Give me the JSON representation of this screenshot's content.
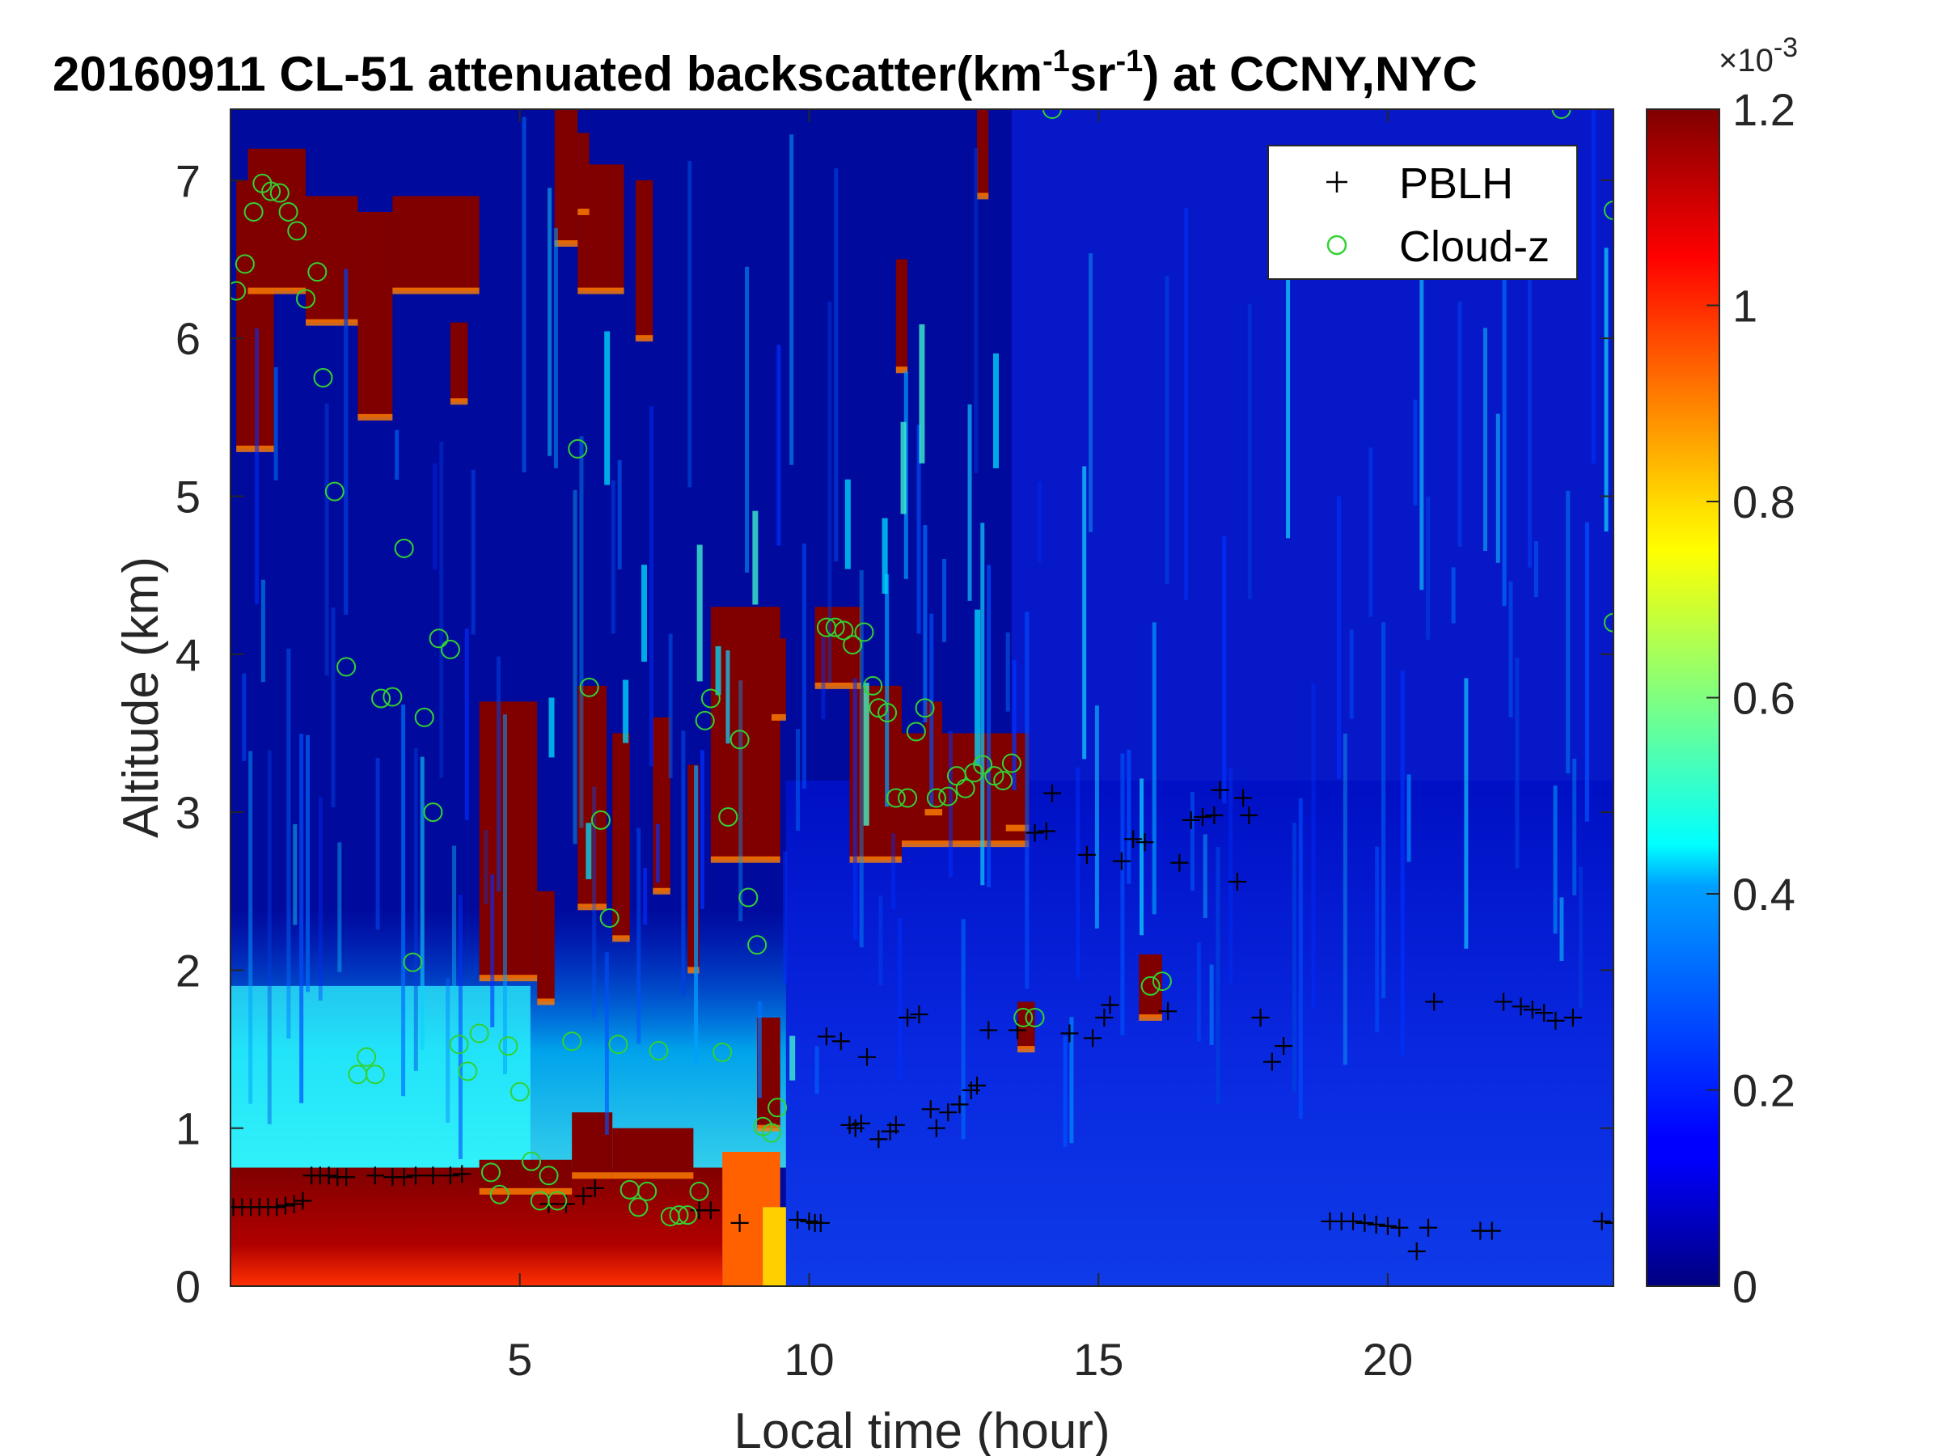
{
  "figure": {
    "title_main": "20160911  CL-51 attenuated backscatter(km",
    "title_sup1": "-1",
    "title_mid": "sr",
    "title_sup2": "-1",
    "title_end": ") at CCNY,NYC"
  },
  "chart_data": {
    "type": "heatmap",
    "xlabel": "Local time (hour)",
    "ylabel": "Altitude (km)",
    "xlim": [
      0,
      23.9
    ],
    "ylim": [
      0,
      7.45
    ],
    "xticks": [
      5,
      10,
      15,
      20
    ],
    "yticks": [
      0,
      1,
      2,
      3,
      4,
      5,
      6,
      7
    ],
    "colorbar": {
      "colormap": "jet",
      "clim": [
        0,
        1.2
      ],
      "ticks": [
        "0",
        "0.2",
        "0.4",
        "0.6",
        "0.8",
        "1",
        "1.2"
      ],
      "ticks_num": [
        0,
        0.2,
        0.4,
        0.6,
        0.8,
        1.0,
        1.2
      ],
      "exponent_base": "×10",
      "exponent": "-3"
    },
    "legend": {
      "placement": "top-right",
      "entries": [
        {
          "label": "PBLH",
          "marker": "+",
          "color": "#000000"
        },
        {
          "label": "Cloud-z",
          "marker": "o",
          "color": "#32d232"
        }
      ]
    },
    "series": [
      {
        "name": "PBLH",
        "points": [
          [
            0.05,
            0.5
          ],
          [
            0.2,
            0.5
          ],
          [
            0.35,
            0.5
          ],
          [
            0.5,
            0.5
          ],
          [
            0.65,
            0.5
          ],
          [
            0.8,
            0.5
          ],
          [
            0.95,
            0.51
          ],
          [
            1.1,
            0.52
          ],
          [
            1.25,
            0.54
          ],
          [
            1.4,
            0.7
          ],
          [
            1.55,
            0.7
          ],
          [
            1.7,
            0.7
          ],
          [
            1.85,
            0.69
          ],
          [
            2.0,
            0.69
          ],
          [
            2.5,
            0.7
          ],
          [
            2.8,
            0.69
          ],
          [
            3.0,
            0.69
          ],
          [
            3.2,
            0.7
          ],
          [
            3.5,
            0.7
          ],
          [
            3.8,
            0.7
          ],
          [
            4.0,
            0.71
          ],
          [
            5.5,
            0.52
          ],
          [
            5.8,
            0.52
          ],
          [
            6.1,
            0.57
          ],
          [
            6.3,
            0.62
          ],
          [
            8.1,
            0.48
          ],
          [
            8.3,
            0.48
          ],
          [
            8.8,
            0.4
          ],
          [
            9.8,
            0.42
          ],
          [
            10.0,
            0.41
          ],
          [
            10.1,
            0.4
          ],
          [
            10.2,
            0.4
          ],
          [
            10.3,
            1.58
          ],
          [
            10.55,
            1.55
          ],
          [
            10.8,
            1.0
          ],
          [
            10.7,
            1.02
          ],
          [
            10.9,
            1.03
          ],
          [
            11.0,
            1.45
          ],
          [
            11.2,
            0.93
          ],
          [
            11.4,
            0.98
          ],
          [
            11.5,
            1.02
          ],
          [
            11.7,
            1.7
          ],
          [
            11.9,
            1.72
          ],
          [
            12.1,
            1.12
          ],
          [
            12.2,
            1.0
          ],
          [
            12.4,
            1.1
          ],
          [
            12.6,
            1.15
          ],
          [
            12.8,
            1.24
          ],
          [
            12.9,
            1.27
          ],
          [
            13.1,
            1.62
          ],
          [
            13.6,
            1.62
          ],
          [
            13.9,
            2.87
          ],
          [
            14.1,
            2.88
          ],
          [
            14.2,
            3.12
          ],
          [
            14.5,
            1.6
          ],
          [
            14.8,
            2.73
          ],
          [
            14.9,
            1.57
          ],
          [
            15.1,
            1.7
          ],
          [
            15.2,
            1.78
          ],
          [
            15.4,
            2.69
          ],
          [
            15.6,
            2.83
          ],
          [
            15.8,
            2.81
          ],
          [
            16.2,
            1.74
          ],
          [
            16.4,
            2.68
          ],
          [
            16.6,
            2.95
          ],
          [
            16.8,
            2.97
          ],
          [
            17.0,
            2.98
          ],
          [
            17.1,
            3.14
          ],
          [
            17.4,
            2.56
          ],
          [
            17.5,
            3.09
          ],
          [
            17.6,
            2.98
          ],
          [
            17.8,
            1.7
          ],
          [
            18.0,
            1.42
          ],
          [
            18.2,
            1.52
          ],
          [
            19.0,
            0.41
          ],
          [
            19.2,
            0.41
          ],
          [
            19.4,
            0.41
          ],
          [
            19.6,
            0.4
          ],
          [
            19.8,
            0.39
          ],
          [
            20.0,
            0.38
          ],
          [
            20.2,
            0.37
          ],
          [
            20.5,
            0.22
          ],
          [
            20.7,
            0.37
          ],
          [
            20.8,
            1.8
          ],
          [
            21.6,
            0.35
          ],
          [
            21.8,
            0.35
          ],
          [
            22.0,
            1.8
          ],
          [
            22.3,
            1.77
          ],
          [
            22.5,
            1.75
          ],
          [
            22.7,
            1.73
          ],
          [
            22.9,
            1.68
          ],
          [
            23.2,
            1.7
          ],
          [
            23.7,
            0.41
          ],
          [
            23.9,
            0.4
          ]
        ]
      },
      {
        "name": "Cloud-z",
        "points": [
          [
            0.1,
            6.3
          ],
          [
            0.25,
            6.47
          ],
          [
            0.4,
            6.8
          ],
          [
            0.55,
            6.98
          ],
          [
            0.7,
            6.93
          ],
          [
            0.85,
            6.92
          ],
          [
            1.0,
            6.8
          ],
          [
            1.15,
            6.68
          ],
          [
            1.3,
            6.25
          ],
          [
            1.5,
            6.42
          ],
          [
            1.6,
            5.75
          ],
          [
            1.8,
            5.03
          ],
          [
            2.0,
            3.92
          ],
          [
            2.2,
            1.34
          ],
          [
            2.35,
            1.45
          ],
          [
            2.5,
            1.34
          ],
          [
            2.6,
            3.72
          ],
          [
            2.8,
            3.73
          ],
          [
            3.0,
            4.67
          ],
          [
            3.15,
            2.05
          ],
          [
            3.35,
            3.6
          ],
          [
            3.5,
            3.0
          ],
          [
            3.6,
            4.1
          ],
          [
            3.8,
            4.03
          ],
          [
            3.95,
            1.53
          ],
          [
            4.1,
            1.36
          ],
          [
            4.3,
            1.6
          ],
          [
            4.5,
            0.72
          ],
          [
            4.65,
            0.58
          ],
          [
            4.8,
            1.52
          ],
          [
            5.0,
            1.23
          ],
          [
            5.2,
            0.79
          ],
          [
            5.35,
            0.54
          ],
          [
            5.5,
            0.7
          ],
          [
            5.65,
            0.54
          ],
          [
            5.9,
            1.55
          ],
          [
            6.0,
            5.3
          ],
          [
            6.2,
            3.79
          ],
          [
            6.4,
            2.95
          ],
          [
            6.55,
            2.33
          ],
          [
            6.7,
            1.53
          ],
          [
            6.9,
            0.61
          ],
          [
            7.05,
            0.5
          ],
          [
            7.2,
            0.6
          ],
          [
            7.4,
            1.49
          ],
          [
            7.6,
            0.44
          ],
          [
            7.75,
            0.45
          ],
          [
            7.9,
            0.45
          ],
          [
            8.1,
            0.6
          ],
          [
            8.2,
            3.58
          ],
          [
            8.3,
            3.72
          ],
          [
            8.5,
            1.48
          ],
          [
            8.6,
            2.97
          ],
          [
            8.8,
            3.46
          ],
          [
            8.95,
            2.46
          ],
          [
            9.1,
            2.16
          ],
          [
            9.2,
            1.01
          ],
          [
            9.35,
            0.97
          ],
          [
            9.45,
            1.13
          ],
          [
            10.3,
            4.17
          ],
          [
            10.45,
            4.17
          ],
          [
            10.6,
            4.15
          ],
          [
            10.75,
            4.06
          ],
          [
            10.95,
            4.14
          ],
          [
            11.1,
            3.8
          ],
          [
            11.2,
            3.66
          ],
          [
            11.35,
            3.63
          ],
          [
            11.5,
            3.09
          ],
          [
            11.7,
            3.09
          ],
          [
            11.85,
            3.51
          ],
          [
            12.0,
            3.66
          ],
          [
            12.2,
            3.09
          ],
          [
            12.4,
            3.1
          ],
          [
            12.55,
            3.23
          ],
          [
            12.7,
            3.15
          ],
          [
            12.85,
            3.25
          ],
          [
            13.0,
            3.3
          ],
          [
            13.2,
            3.23
          ],
          [
            13.35,
            3.2
          ],
          [
            13.5,
            3.31
          ],
          [
            14.2,
            7.45
          ],
          [
            15.9,
            1.9
          ],
          [
            16.1,
            1.93
          ],
          [
            13.7,
            1.7
          ],
          [
            13.9,
            1.7
          ],
          [
            23.0,
            7.45
          ],
          [
            23.9,
            6.81
          ],
          [
            23.9,
            4.2
          ]
        ]
      }
    ]
  }
}
